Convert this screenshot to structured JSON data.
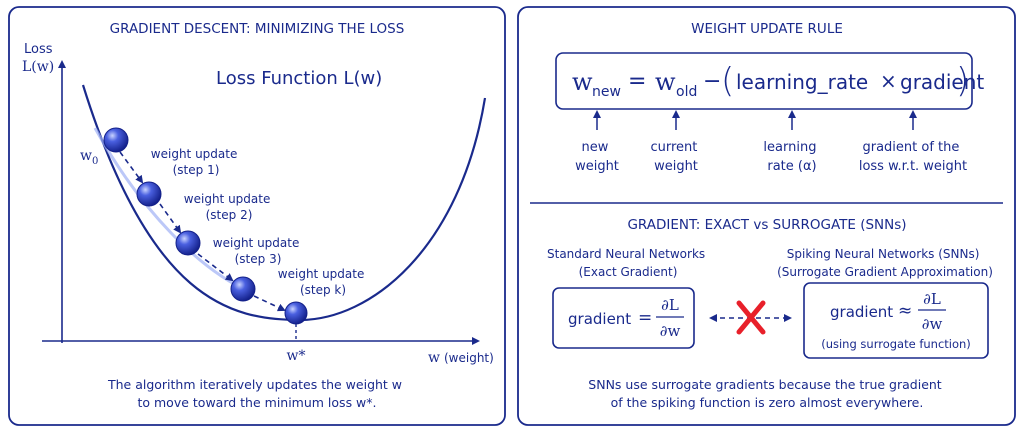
{
  "left": {
    "title": "GRADIENT DESCENT: MINIMIZING THE LOSS",
    "y_axis_label_line1": "Loss",
    "y_axis_label_line2": "L(w)",
    "curve_label": "Loss Function L(w)",
    "start_label": "w",
    "start_label_sub": "0",
    "steps": [
      {
        "line1": "weight update",
        "line2": "(step 1)"
      },
      {
        "line1": "weight update",
        "line2": "(step 2)"
      },
      {
        "line1": "weight update",
        "line2": "(step 3)"
      },
      {
        "line1": "weight update",
        "line2": "(step k)"
      }
    ],
    "minimum_label": "w*",
    "x_axis_label": "w",
    "x_axis_label_note": "(weight)",
    "caption_line1": "The algorithm iteratively updates the weight w",
    "caption_line2": "to move toward the minimum loss w*."
  },
  "right_top": {
    "title": "WEIGHT UPDATE RULE",
    "formula": {
      "w": "w",
      "new_sub": "new",
      "equals": "=",
      "old_sub": "old",
      "minus": "−",
      "lr": "learning_rate",
      "times": "×",
      "grad": "gradient"
    },
    "annotations": [
      {
        "line1": "new",
        "line2": "weight"
      },
      {
        "line1": "current",
        "line2": "weight"
      },
      {
        "line1": "learning",
        "line2": "rate (α)"
      },
      {
        "line1": "gradient of the",
        "line2": "loss w.r.t. weight"
      }
    ]
  },
  "right_bottom": {
    "title": "GRADIENT: EXACT vs SURROGATE (SNNs)",
    "standard_heading_line1": "Standard Neural Networks",
    "standard_heading_line2": "(Exact Gradient)",
    "spiking_heading_line1": "Spiking Neural Networks (SNNs)",
    "spiking_heading_line2": "(Surrogate Gradient Approximation)",
    "exact_formula": {
      "word": "gradient",
      "op": "=",
      "num": "∂L",
      "den": "∂w"
    },
    "surrogate_formula": {
      "word": "gradient",
      "op": "≈",
      "num": "∂L",
      "den": "∂w"
    },
    "surrogate_note": "(using surrogate function)",
    "caption_line1": "SNNs use surrogate gradients because the true gradient",
    "caption_line2": "of the spiking function is zero almost everywhere."
  },
  "colors": {
    "ink": "#1a2a8c",
    "cross": "#e8202a",
    "ball": "#3a4fd0"
  }
}
